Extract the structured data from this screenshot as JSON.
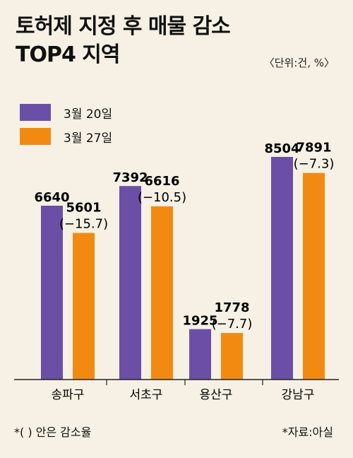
{
  "chart_data": {
    "type": "bar",
    "title_line1": "토허제 지정 후 매물 감소",
    "title_line2": "TOP4 지역",
    "unit_note": "〈단위:건, %〉",
    "categories": [
      "송파구",
      "서초구",
      "용산구",
      "강남구"
    ],
    "series": [
      {
        "name": "3월 20일",
        "color": "#6b4fa6",
        "values": [
          6640,
          7392,
          1925,
          8504
        ]
      },
      {
        "name": "3월 27일",
        "color": "#f28a12",
        "values": [
          5601,
          6616,
          1778,
          7891
        ]
      }
    ],
    "change_labels": [
      "(−15.7)",
      "(−10.5)",
      "(−7.7)",
      "(−7.3)"
    ],
    "ylim": [
      0,
      8504
    ]
  },
  "footnotes": {
    "left": "*(  ) 안은 감소율",
    "right": "*자료:아실"
  }
}
